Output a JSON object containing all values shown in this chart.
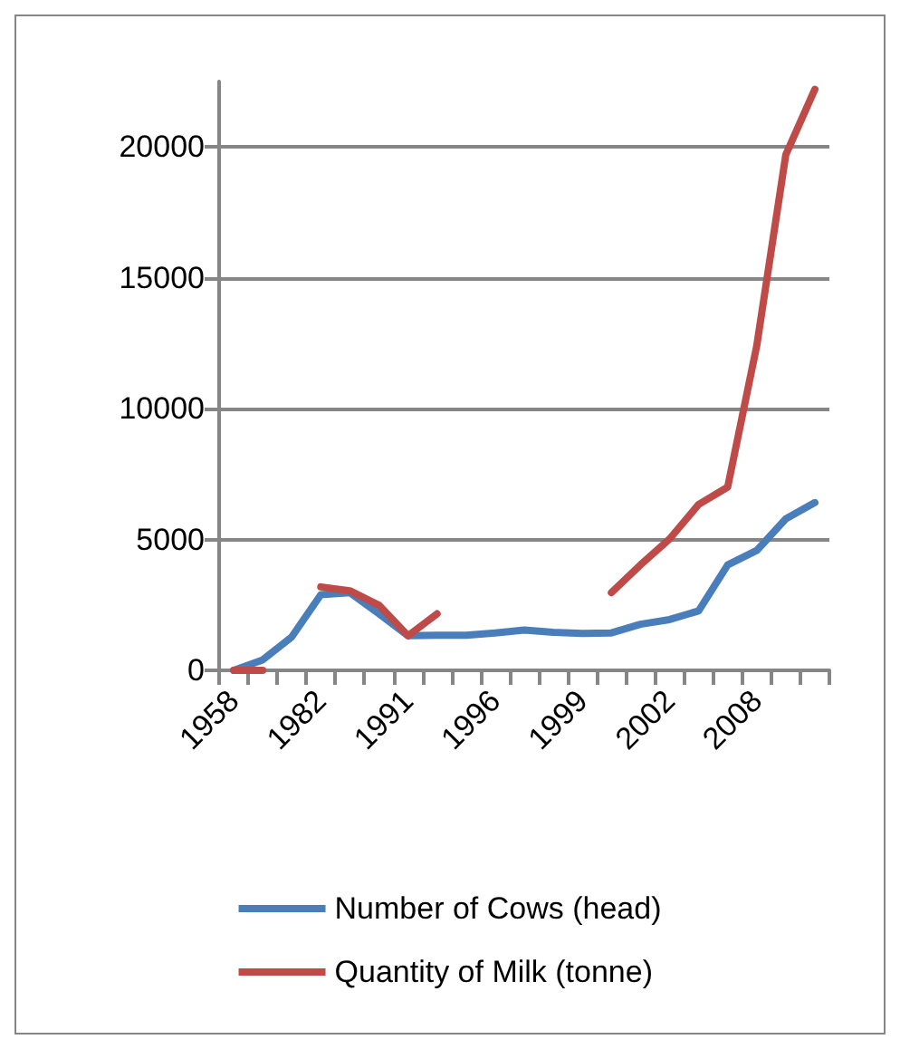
{
  "chart_data": {
    "type": "line",
    "categories": [
      "1958",
      null,
      null,
      "1982",
      null,
      null,
      "1991",
      null,
      null,
      "1996",
      null,
      null,
      "1999",
      null,
      null,
      "2002",
      null,
      null,
      "2008",
      null,
      null
    ],
    "series": [
      {
        "name": "Number of Cows (head)",
        "color": "#4a7ebb",
        "values": [
          0,
          400,
          1280,
          2890,
          2970,
          2160,
          1320,
          1340,
          1340,
          1430,
          1540,
          1450,
          1410,
          1430,
          1760,
          1940,
          2270,
          4030,
          4580,
          5790,
          6410
        ]
      },
      {
        "name": "Quantity of Milk (tonne)",
        "color": "#be4b48",
        "values": [
          0,
          0,
          null,
          3190,
          3040,
          2490,
          1320,
          2160,
          null,
          null,
          null,
          null,
          null,
          2970,
          4030,
          5020,
          6340,
          7000,
          12400,
          19700,
          22200
        ]
      }
    ],
    "ylim": [
      0,
      22500
    ],
    "yticks": [
      0,
      5000,
      10000,
      15000,
      20000
    ],
    "grid": "y",
    "legend": "bottom",
    "marker": "none",
    "line_style": "solid"
  }
}
